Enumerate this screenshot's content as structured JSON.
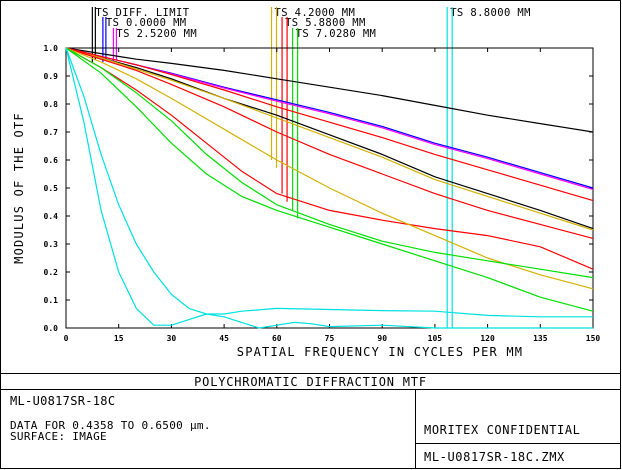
{
  "chart_data": {
    "type": "line",
    "title": "POLYCHROMATIC DIFFRACTION MTF",
    "xlabel": "SPATIAL FREQUENCY IN CYCLES PER MM",
    "ylabel": "MODULUS OF THE OTF",
    "xlim": [
      0,
      150
    ],
    "ylim": [
      0,
      1.0
    ],
    "x_ticks": [
      "0",
      "15",
      "30",
      "45",
      "60",
      "75",
      "90",
      "105",
      "120",
      "135",
      "150"
    ],
    "y_ticks": [
      "0.0",
      "0.1",
      "0.2",
      "0.3",
      "0.4",
      "0.5",
      "0.6",
      "0.7",
      "0.8",
      "0.9",
      "1.0"
    ],
    "legend": [
      {
        "label": "TS DIFF. LIMIT",
        "color": "#000000",
        "x": 7.5
      },
      {
        "label": "TS 0.0000 MM",
        "color": "#0000ff",
        "x": 10.5
      },
      {
        "label": "TS 2.5200 MM",
        "color": "#ff00ff",
        "x": 13.5
      },
      {
        "label": "TS 4.2000 MM",
        "color": "#d4b000",
        "x": 58.5
      },
      {
        "label": "TS 5.8800 MM",
        "color": "#ff0000",
        "x": 61.5
      },
      {
        "label": "TS 7.0280 MM",
        "color": "#00e000",
        "x": 64.5
      },
      {
        "label": "TS 8.8000 MM",
        "color": "#00e0e0",
        "x": 108.5
      }
    ],
    "series": [
      {
        "color": "#000000",
        "x": [
          0,
          10,
          20,
          30,
          45,
          60,
          75,
          90,
          105,
          120,
          135,
          150
        ],
        "y": [
          1.0,
          0.98,
          0.96,
          0.945,
          0.92,
          0.89,
          0.86,
          0.83,
          0.795,
          0.76,
          0.73,
          0.7
        ]
      },
      {
        "color": "#0000ff",
        "x": [
          0,
          10,
          20,
          30,
          45,
          60,
          75,
          90,
          105,
          120,
          135,
          150
        ],
        "y": [
          1.0,
          0.97,
          0.94,
          0.91,
          0.86,
          0.815,
          0.77,
          0.72,
          0.66,
          0.61,
          0.555,
          0.5
        ]
      },
      {
        "color": "#ff00ff",
        "x": [
          0,
          10,
          20,
          30,
          45,
          60,
          75,
          90,
          105,
          120,
          135,
          150
        ],
        "y": [
          1.0,
          0.97,
          0.94,
          0.908,
          0.857,
          0.81,
          0.765,
          0.715,
          0.655,
          0.605,
          0.55,
          0.495
        ]
      },
      {
        "color": "#000000",
        "x": [
          0,
          10,
          20,
          30,
          45,
          60,
          75,
          90,
          105,
          120,
          135,
          150
        ],
        "y": [
          1.0,
          0.965,
          0.93,
          0.89,
          0.82,
          0.76,
          0.69,
          0.62,
          0.54,
          0.48,
          0.42,
          0.355
        ]
      },
      {
        "color": "#d4b000",
        "x": [
          0,
          10,
          20,
          30,
          45,
          60,
          75,
          90,
          105,
          120,
          135,
          150
        ],
        "y": [
          1.0,
          0.965,
          0.925,
          0.885,
          0.82,
          0.75,
          0.68,
          0.61,
          0.53,
          0.47,
          0.41,
          0.35
        ]
      },
      {
        "color": "#ff0000",
        "x": [
          0,
          10,
          20,
          30,
          45,
          60,
          75,
          90,
          105,
          120,
          135,
          150
        ],
        "y": [
          1.0,
          0.97,
          0.94,
          0.905,
          0.85,
          0.79,
          0.735,
          0.68,
          0.62,
          0.565,
          0.51,
          0.455
        ]
      },
      {
        "color": "#ff0000",
        "x": [
          0,
          10,
          20,
          30,
          45,
          60,
          75,
          90,
          105,
          120,
          135,
          150
        ],
        "y": [
          1.0,
          0.96,
          0.92,
          0.87,
          0.79,
          0.7,
          0.62,
          0.55,
          0.48,
          0.42,
          0.37,
          0.32
        ]
      },
      {
        "color": "#ff0000",
        "x": [
          0,
          10,
          20,
          30,
          40,
          50,
          60,
          75,
          90,
          105,
          120,
          135,
          150
        ],
        "y": [
          1.0,
          0.93,
          0.85,
          0.76,
          0.66,
          0.56,
          0.48,
          0.42,
          0.385,
          0.355,
          0.33,
          0.29,
          0.21
        ]
      },
      {
        "color": "#d4b000",
        "x": [
          0,
          10,
          20,
          30,
          45,
          60,
          75,
          90,
          105,
          120,
          135,
          150
        ],
        "y": [
          1.0,
          0.95,
          0.89,
          0.82,
          0.71,
          0.6,
          0.5,
          0.41,
          0.33,
          0.25,
          0.19,
          0.14
        ]
      },
      {
        "color": "#00e000",
        "x": [
          0,
          10,
          20,
          30,
          40,
          50,
          60,
          75,
          90,
          105,
          120,
          135,
          150
        ],
        "y": [
          1.0,
          0.93,
          0.84,
          0.74,
          0.62,
          0.52,
          0.44,
          0.37,
          0.31,
          0.27,
          0.24,
          0.21,
          0.18
        ]
      },
      {
        "color": "#00e000",
        "x": [
          0,
          10,
          20,
          30,
          40,
          50,
          60,
          75,
          90,
          105,
          120,
          135,
          150
        ],
        "y": [
          1.0,
          0.91,
          0.79,
          0.66,
          0.55,
          0.47,
          0.42,
          0.36,
          0.3,
          0.24,
          0.18,
          0.11,
          0.06
        ]
      },
      {
        "color": "#00e0e0",
        "x": [
          0,
          5,
          10,
          15,
          20,
          25,
          30,
          35,
          40,
          45,
          50,
          60,
          75,
          90,
          105,
          120,
          135,
          150
        ],
        "y": [
          1.0,
          0.83,
          0.62,
          0.44,
          0.3,
          0.2,
          0.12,
          0.07,
          0.05,
          0.05,
          0.06,
          0.07,
          0.066,
          0.062,
          0.06,
          0.045,
          0.04,
          0.04
        ]
      },
      {
        "color": "#00e0e0",
        "x": [
          0,
          5,
          10,
          15,
          20,
          25,
          30,
          35,
          40,
          45,
          50,
          55,
          60,
          65,
          70,
          75,
          90,
          105,
          120,
          135,
          150
        ],
        "y": [
          1.0,
          0.74,
          0.42,
          0.2,
          0.07,
          0.01,
          0.01,
          0.03,
          0.05,
          0.04,
          0.02,
          0.0,
          0.01,
          0.02,
          0.015,
          0.005,
          0.01,
          0.0,
          0.0,
          0.0,
          0.0
        ]
      }
    ]
  },
  "footer": {
    "lens_name": "ML-U0817SR-18C",
    "data_range": "DATA FOR 0.4358 TO 0.6500 µm.",
    "surface": "SURFACE: IMAGE",
    "confidential": "MORITEX CONFIDENTIAL",
    "file_name": "ML-U0817SR-18C.ZMX"
  }
}
